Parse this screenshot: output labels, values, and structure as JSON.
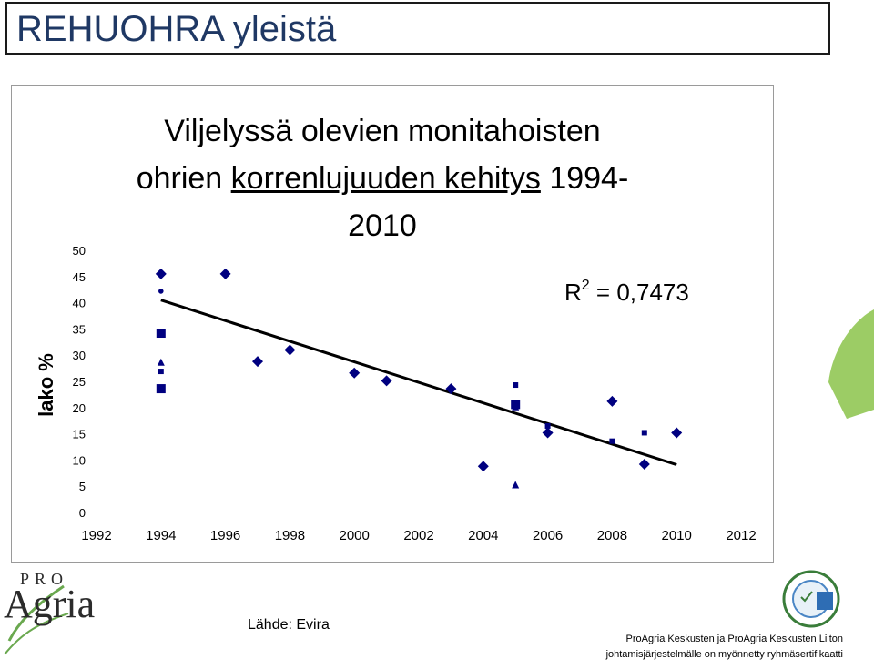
{
  "slide": {
    "title": "REHUOHRA yleistä",
    "source": "Lähde: Evira",
    "footer_line1": "ProAgria Keskusten ja ProAgria Keskusten Liiton",
    "footer_line2": "johtamisjärjestelmälle on myönnetty ryhmäsertifikaatti",
    "logo_pro": "PRO",
    "logo_agria": "Agria",
    "brand_color": "#1f3864"
  },
  "chart_data": {
    "type": "scatter",
    "title_part1": "Viljelyssä olevien monitahoisten",
    "title_part2a": "ohrien ",
    "title_part2b": "korrenlujuuden kehitys",
    "title_part2c": " 1994-",
    "title_part3": "2010",
    "ylabel": "lako %",
    "xlabel": "",
    "xlim": [
      1992,
      2012
    ],
    "ylim": [
      0,
      50
    ],
    "xticks": [
      "1992",
      "1994",
      "1996",
      "1998",
      "2000",
      "2002",
      "2004",
      "2006",
      "2008",
      "2010",
      "2012"
    ],
    "yticks": [
      "0",
      "5",
      "10",
      "15",
      "20",
      "25",
      "30",
      "35",
      "40",
      "45",
      "50"
    ],
    "annotation": "R",
    "annotation_sup": "2",
    "annotation_value": " = 0,7473",
    "marker_color": "#000080",
    "series": [
      {
        "name": "diamond",
        "marker": "diamond",
        "points": [
          [
            1994,
            45.5
          ],
          [
            1996,
            45.5
          ],
          [
            1997,
            28.8
          ],
          [
            1998,
            31
          ],
          [
            2000,
            26.6
          ],
          [
            2001,
            25.1
          ],
          [
            2003,
            23.6
          ],
          [
            2004,
            8.8
          ],
          [
            2006,
            15.2
          ],
          [
            2008,
            21.2
          ],
          [
            2009,
            9.2
          ],
          [
            2010,
            15.2
          ]
        ]
      },
      {
        "name": "small-dot",
        "marker": "circle",
        "points": [
          [
            1994,
            42.2
          ]
        ]
      },
      {
        "name": "large-square",
        "marker": "square-large",
        "points": [
          [
            1994,
            34.2
          ],
          [
            1994,
            23.6
          ],
          [
            2005,
            20.6
          ]
        ]
      },
      {
        "name": "small-square",
        "marker": "square-small",
        "points": [
          [
            1994,
            26.9
          ],
          [
            2005,
            24.3
          ],
          [
            2006,
            16.5
          ],
          [
            2008,
            13.6
          ],
          [
            2009,
            15.2
          ]
        ]
      },
      {
        "name": "triangle",
        "marker": "triangle",
        "points": [
          [
            1994,
            28.6
          ],
          [
            2005,
            20.1
          ],
          [
            2005,
            5.2
          ]
        ]
      }
    ],
    "trendline": {
      "x": [
        1994,
        2010
      ],
      "y": [
        40.5,
        9.1
      ]
    }
  }
}
